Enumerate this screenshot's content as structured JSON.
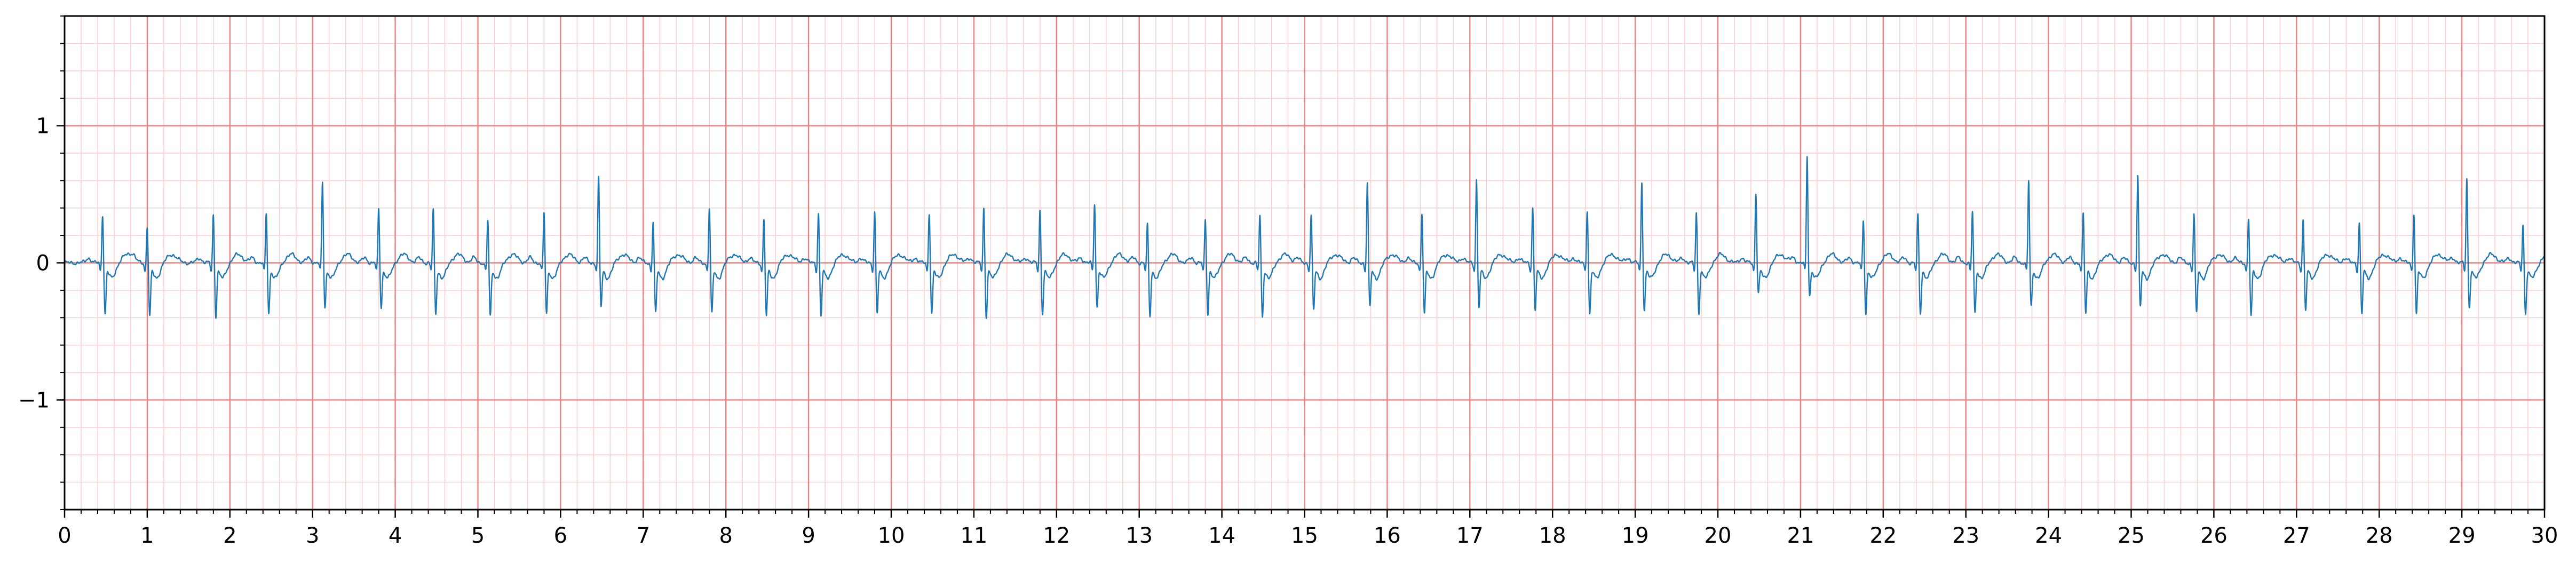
{
  "chart_data": {
    "type": "line",
    "title": "",
    "xlabel": "",
    "ylabel": "",
    "xlim": [
      0,
      30
    ],
    "ylim": [
      -1.8,
      1.8
    ],
    "x_major_ticks": [
      0,
      1,
      2,
      3,
      4,
      5,
      6,
      7,
      8,
      9,
      10,
      11,
      12,
      13,
      14,
      15,
      16,
      17,
      18,
      19,
      20,
      21,
      22,
      23,
      24,
      25,
      26,
      27,
      28,
      29,
      30
    ],
    "x_tick_labels": [
      "0",
      "1",
      "2",
      "3",
      "4",
      "5",
      "6",
      "7",
      "8",
      "9",
      "10",
      "11",
      "12",
      "13",
      "14",
      "15",
      "16",
      "17",
      "18",
      "19",
      "20",
      "21",
      "22",
      "23",
      "24",
      "25",
      "26",
      "27",
      "28",
      "29",
      "30"
    ],
    "y_major_ticks": [
      -1,
      0,
      1
    ],
    "y_tick_labels": [
      "−1",
      "0",
      "1"
    ],
    "x_minor_step": 0.2,
    "y_minor_step": 0.2,
    "grid": true,
    "colors": {
      "major_grid": "#f08080",
      "minor_grid": "#fbd0d0",
      "trace": "#1f77b4",
      "axes": "#000000"
    },
    "series": [
      {
        "beat_times": [
          0.46,
          1.0,
          1.8,
          2.44,
          3.12,
          3.8,
          4.46,
          5.12,
          5.8,
          6.46,
          7.12,
          7.8,
          8.46,
          9.12,
          9.8,
          10.46,
          11.12,
          11.8,
          12.46,
          13.1,
          13.8,
          14.46,
          15.08,
          15.76,
          16.42,
          17.08,
          17.76,
          18.42,
          19.08,
          19.74,
          20.46,
          21.08,
          21.76,
          22.42,
          23.08,
          23.76,
          24.42,
          25.08,
          25.76,
          26.42,
          27.08,
          27.76,
          28.42,
          29.06,
          29.74
        ],
        "r_peaks": [
          0.37,
          0.28,
          0.37,
          0.37,
          0.6,
          0.41,
          0.4,
          0.32,
          0.38,
          0.63,
          0.31,
          0.41,
          0.33,
          0.38,
          0.39,
          0.38,
          0.42,
          0.4,
          0.45,
          0.29,
          0.33,
          0.36,
          0.36,
          0.6,
          0.38,
          0.62,
          0.42,
          0.4,
          0.6,
          0.38,
          0.52,
          0.79,
          0.32,
          0.36,
          0.39,
          0.61,
          0.37,
          0.65,
          0.37,
          0.34,
          0.33,
          0.31,
          0.38,
          0.63,
          0.29
        ],
        "s_troughs": [
          -0.35,
          -0.37,
          -0.37,
          -0.35,
          -0.3,
          -0.3,
          -0.35,
          -0.37,
          -0.35,
          -0.3,
          -0.35,
          -0.35,
          -0.37,
          -0.37,
          -0.35,
          -0.35,
          -0.37,
          -0.35,
          -0.3,
          -0.37,
          -0.35,
          -0.37,
          -0.32,
          -0.3,
          -0.35,
          -0.3,
          -0.32,
          -0.35,
          -0.32,
          -0.35,
          -0.2,
          -0.22,
          -0.35,
          -0.35,
          -0.35,
          -0.3,
          -0.35,
          -0.3,
          -0.35,
          -0.37,
          -0.32,
          -0.35,
          -0.35,
          -0.3,
          -0.35
        ]
      }
    ]
  }
}
